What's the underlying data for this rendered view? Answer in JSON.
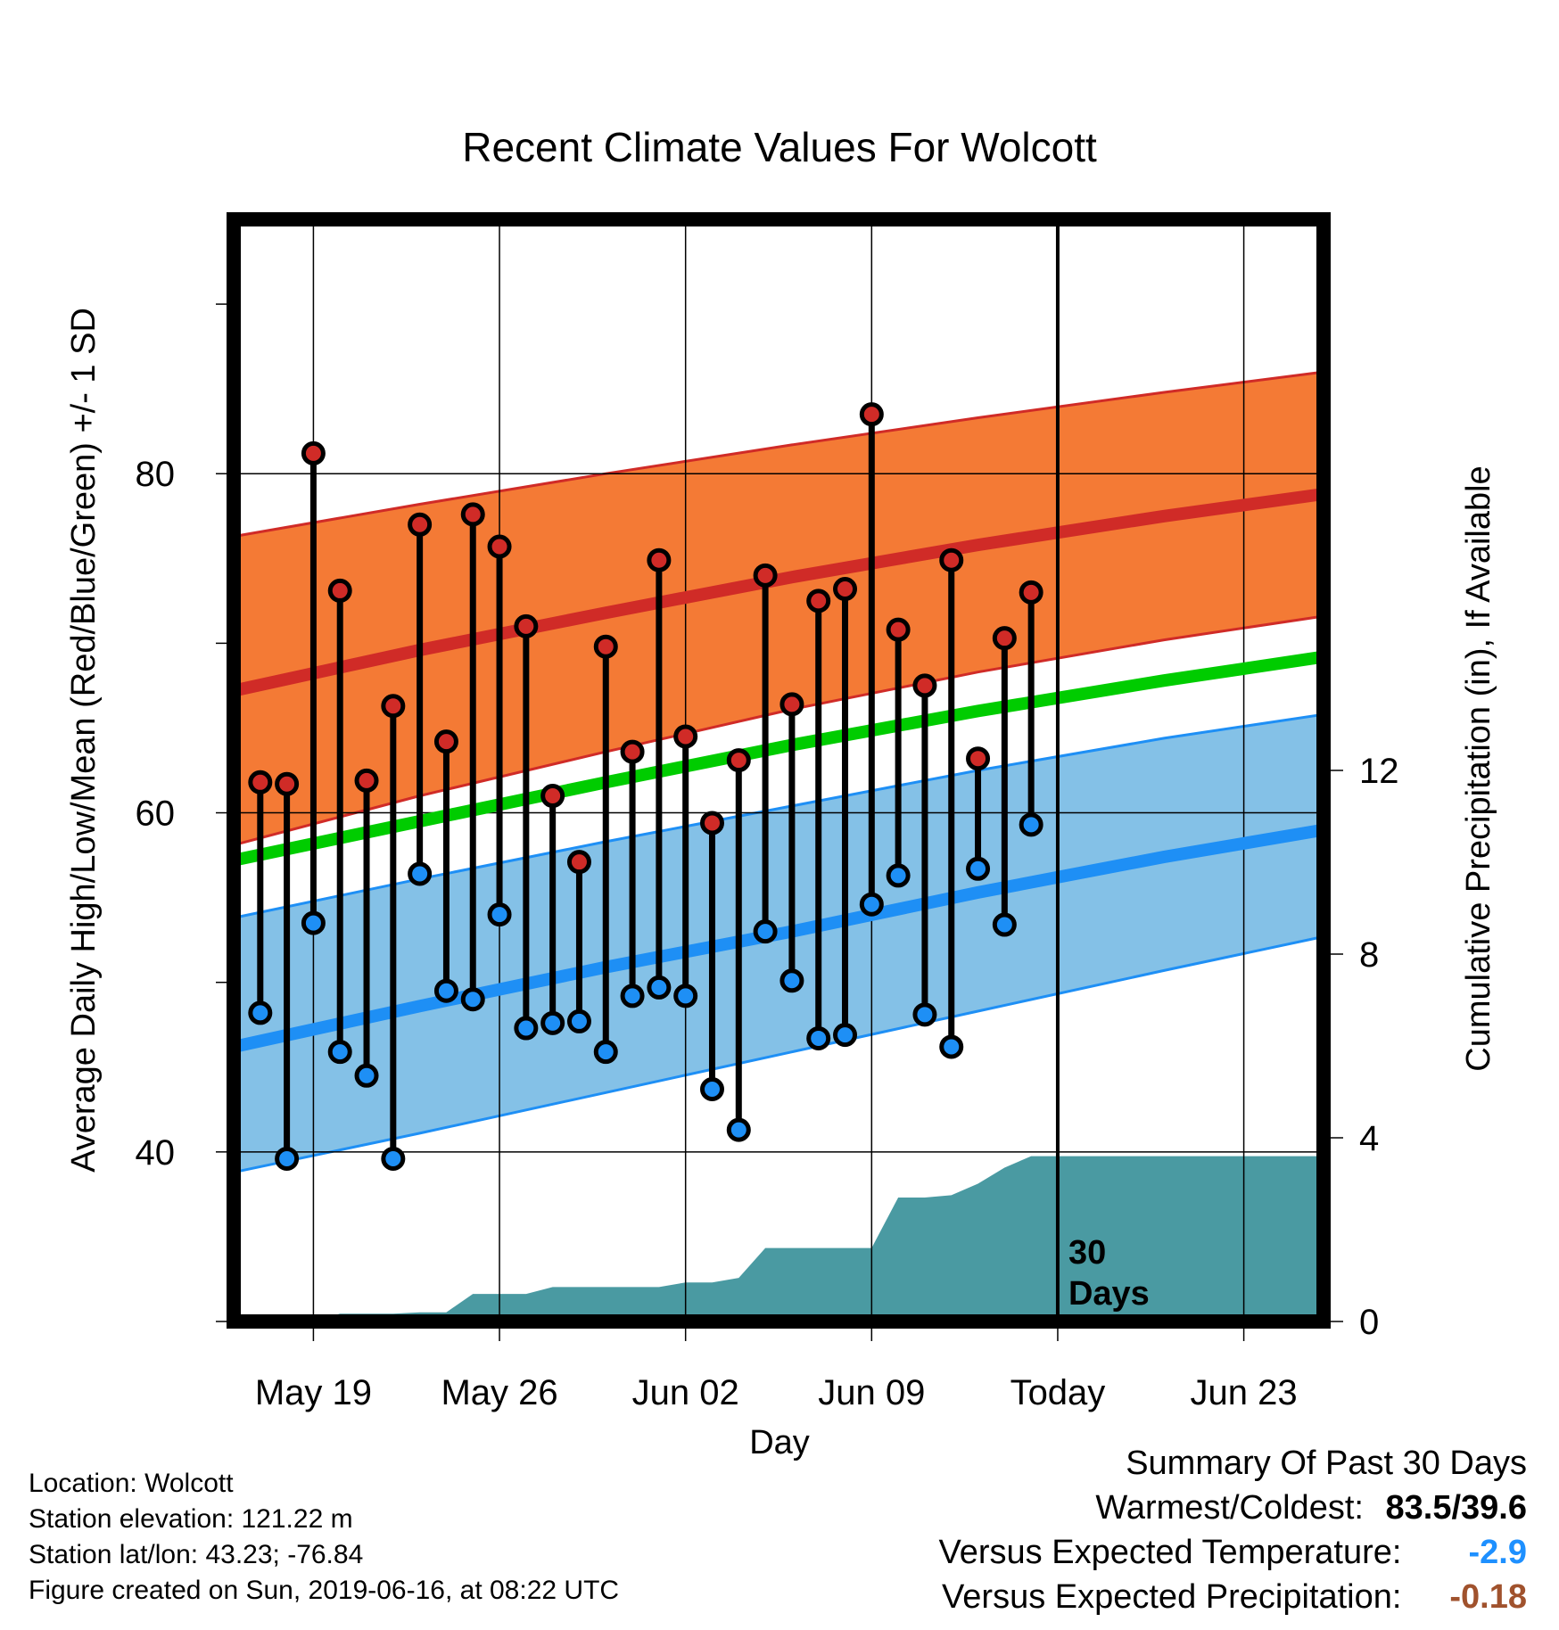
{
  "chart_data": {
    "type": "line",
    "title": "Recent Climate Values For Wolcott",
    "xlabel": "Day",
    "ylabel": "Average Daily High/Low/Mean (Red/Blue/Green) +/- 1 SD",
    "y2label": "Cumulative Precipitation (in), If Available",
    "x_range": [
      "2019-05-16",
      "2019-06-26"
    ],
    "ylim": [
      30,
      95
    ],
    "y2lim": [
      0,
      24
    ],
    "yticks": [
      40,
      60,
      80
    ],
    "y2ticks": [
      0,
      4,
      8,
      12
    ],
    "xticks": [
      {
        "date": "2019-05-19",
        "label": "May 19"
      },
      {
        "date": "2019-05-26",
        "label": "May 26"
      },
      {
        "date": "2019-06-02",
        "label": "Jun 02"
      },
      {
        "date": "2019-06-09",
        "label": "Jun 09"
      },
      {
        "date": "2019-06-16",
        "label": "Today"
      },
      {
        "date": "2019-06-23",
        "label": "Jun 23"
      }
    ],
    "today": "2019-06-16",
    "today_label_lines": [
      "30",
      "Days"
    ],
    "normals": {
      "dates": [
        "2019-05-16",
        "2019-05-23",
        "2019-05-30",
        "2019-06-06",
        "2019-06-13",
        "2019-06-20",
        "2019-06-26"
      ],
      "high_mean": [
        67.2,
        69.6,
        71.8,
        73.9,
        75.8,
        77.5,
        78.8
      ],
      "high_plus_sd": [
        76.3,
        78.2,
        80.0,
        81.7,
        83.3,
        84.8,
        86.0
      ],
      "high_minus_sd": [
        58.1,
        61.0,
        63.6,
        66.1,
        68.3,
        70.2,
        71.6
      ],
      "mean": [
        57.2,
        59.5,
        61.8,
        64.0,
        66.0,
        67.8,
        69.2
      ],
      "low_mean": [
        46.2,
        48.6,
        50.9,
        53.0,
        55.3,
        57.4,
        59.0
      ],
      "low_plus_sd": [
        53.8,
        56.1,
        58.3,
        60.4,
        62.5,
        64.4,
        65.8
      ],
      "low_minus_sd": [
        38.8,
        41.1,
        43.5,
        45.9,
        48.3,
        50.7,
        52.7
      ]
    },
    "series": [
      {
        "name": "High",
        "x": [
          "2019-05-17",
          "2019-05-18",
          "2019-05-19",
          "2019-05-20",
          "2019-05-21",
          "2019-05-22",
          "2019-05-23",
          "2019-05-24",
          "2019-05-25",
          "2019-05-26",
          "2019-05-27",
          "2019-05-28",
          "2019-05-29",
          "2019-05-30",
          "2019-05-31",
          "2019-06-01",
          "2019-06-02",
          "2019-06-03",
          "2019-06-04",
          "2019-06-05",
          "2019-06-06",
          "2019-06-07",
          "2019-06-08",
          "2019-06-09",
          "2019-06-10",
          "2019-06-11",
          "2019-06-12",
          "2019-06-13",
          "2019-06-14",
          "2019-06-15"
        ],
        "values": [
          61.8,
          61.7,
          81.2,
          73.1,
          61.9,
          66.3,
          77.0,
          64.2,
          77.6,
          75.7,
          71.0,
          61.0,
          57.1,
          69.8,
          63.6,
          74.9,
          64.5,
          59.4,
          63.1,
          74.0,
          66.4,
          72.5,
          73.2,
          83.5,
          70.8,
          67.5,
          74.9,
          63.2,
          70.3,
          73.0
        ]
      },
      {
        "name": "Low",
        "x": [
          "2019-05-17",
          "2019-05-18",
          "2019-05-19",
          "2019-05-20",
          "2019-05-21",
          "2019-05-22",
          "2019-05-23",
          "2019-05-24",
          "2019-05-25",
          "2019-05-26",
          "2019-05-27",
          "2019-05-28",
          "2019-05-29",
          "2019-05-30",
          "2019-05-31",
          "2019-06-01",
          "2019-06-02",
          "2019-06-03",
          "2019-06-04",
          "2019-06-05",
          "2019-06-06",
          "2019-06-07",
          "2019-06-08",
          "2019-06-09",
          "2019-06-10",
          "2019-06-11",
          "2019-06-12",
          "2019-06-13",
          "2019-06-14",
          "2019-06-15"
        ],
        "values": [
          48.2,
          39.6,
          53.5,
          45.9,
          44.5,
          39.6,
          56.4,
          49.5,
          49.0,
          54.0,
          47.3,
          47.6,
          47.7,
          45.9,
          49.2,
          49.7,
          49.2,
          43.7,
          41.3,
          53.0,
          50.1,
          46.7,
          46.9,
          54.6,
          56.3,
          48.1,
          46.2,
          56.7,
          53.4,
          59.3
        ]
      }
    ],
    "precip": {
      "x": [
        "2019-05-16",
        "2019-05-19",
        "2019-05-20",
        "2019-05-21",
        "2019-05-22",
        "2019-05-23",
        "2019-05-24",
        "2019-05-25",
        "2019-05-26",
        "2019-05-27",
        "2019-05-28",
        "2019-05-29",
        "2019-05-30",
        "2019-05-31",
        "2019-06-01",
        "2019-06-02",
        "2019-06-03",
        "2019-06-04",
        "2019-06-05",
        "2019-06-06",
        "2019-06-07",
        "2019-06-08",
        "2019-06-09",
        "2019-06-10",
        "2019-06-11",
        "2019-06-12",
        "2019-06-13",
        "2019-06-14",
        "2019-06-15",
        "2019-06-26"
      ],
      "values": [
        0.0,
        0.0,
        0.17,
        0.17,
        0.17,
        0.2,
        0.2,
        0.6,
        0.6,
        0.6,
        0.75,
        0.75,
        0.75,
        0.75,
        0.75,
        0.85,
        0.85,
        0.95,
        1.6,
        1.6,
        1.6,
        1.6,
        1.6,
        2.7,
        2.7,
        2.75,
        3.0,
        3.35,
        3.6,
        3.6
      ]
    }
  },
  "footer": {
    "location": "Location: Wolcott",
    "elevation": "Station elevation: 121.22 m",
    "latlon": "Station lat/lon: 43.23; -76.84",
    "created": "Figure created on Sun, 2019-06-16, at 08:22 UTC"
  },
  "summary": {
    "heading": "Summary Of Past 30 Days",
    "warmest_label": "Warmest/Coldest:",
    "warmest_value": "83.5/39.6",
    "temp_label": "Versus Expected Temperature:",
    "temp_value": "-2.9",
    "temp_color": "#1e90ff",
    "precip_label": "Versus Expected Precipitation:",
    "precip_value": "-0.18",
    "precip_color": "#a0522d"
  },
  "colors": {
    "high_band": "#f47a35",
    "high_line": "#d02b27",
    "low_band": "#84c1e7",
    "low_line": "#1e8ff5",
    "mean_line": "#00cc00",
    "precip_fill": "#4a9aa2",
    "high_dot": "#d02b27",
    "low_dot": "#1e8ff5"
  }
}
